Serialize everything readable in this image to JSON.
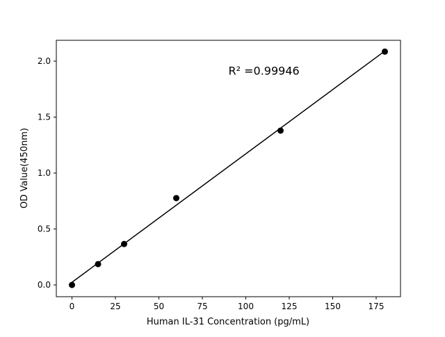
{
  "chart_data": {
    "type": "scatter",
    "title": "",
    "xlabel": "Human IL-31 Concentration (pg/mL)",
    "ylabel": "OD Value(450nm)",
    "xlim": [
      -9,
      189
    ],
    "ylim": [
      -0.105,
      2.186
    ],
    "xticks": [
      0,
      25,
      50,
      75,
      100,
      125,
      150,
      175
    ],
    "xtick_labels": [
      "0",
      "25",
      "50",
      "75",
      "100",
      "125",
      "150",
      "175"
    ],
    "yticks": [
      0.0,
      0.5,
      1.0,
      1.5,
      2.0
    ],
    "ytick_labels": [
      "0.0",
      "0.5",
      "1.0",
      "1.5",
      "2.0"
    ],
    "grid": false,
    "series": [
      {
        "x": [
          0,
          15,
          30,
          60,
          120,
          180
        ],
        "y": [
          0.0,
          0.186,
          0.366,
          0.776,
          1.379,
          2.085
        ],
        "color": "#000000"
      }
    ],
    "fit_line": {
      "type": "linear",
      "color": "#000000"
    },
    "annotation": {
      "text": "R² =0.99946",
      "x": 90,
      "y": 1.88
    }
  }
}
